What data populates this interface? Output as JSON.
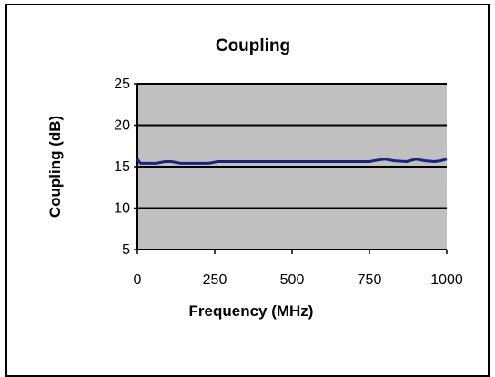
{
  "chart_data": {
    "type": "line",
    "title": "Coupling",
    "xlabel": "Frequency (MHz)",
    "ylabel": "Coupling (dB)",
    "xlim": [
      0,
      1000
    ],
    "ylim": [
      5,
      25
    ],
    "xticks": [
      "0",
      "250",
      "500",
      "750",
      "1000"
    ],
    "yticks": [
      "5",
      "10",
      "15",
      "20",
      "25"
    ],
    "grid": "horizontal",
    "legend": "none",
    "colors": {
      "plot_background": "#c0c0c0",
      "line": "#1a237e",
      "gridline": "#000000"
    },
    "series": [
      {
        "x": [
          0,
          10,
          30,
          60,
          90,
          110,
          140,
          180,
          230,
          260,
          300,
          350,
          400,
          450,
          500,
          550,
          600,
          650,
          700,
          750,
          780,
          800,
          830,
          870,
          900,
          930,
          960,
          980,
          1000
        ],
        "y": [
          15.9,
          15.4,
          15.4,
          15.4,
          15.6,
          15.6,
          15.4,
          15.4,
          15.4,
          15.6,
          15.6,
          15.6,
          15.6,
          15.6,
          15.6,
          15.6,
          15.6,
          15.6,
          15.6,
          15.6,
          15.8,
          15.9,
          15.7,
          15.6,
          15.9,
          15.7,
          15.6,
          15.7,
          15.9
        ]
      }
    ]
  }
}
